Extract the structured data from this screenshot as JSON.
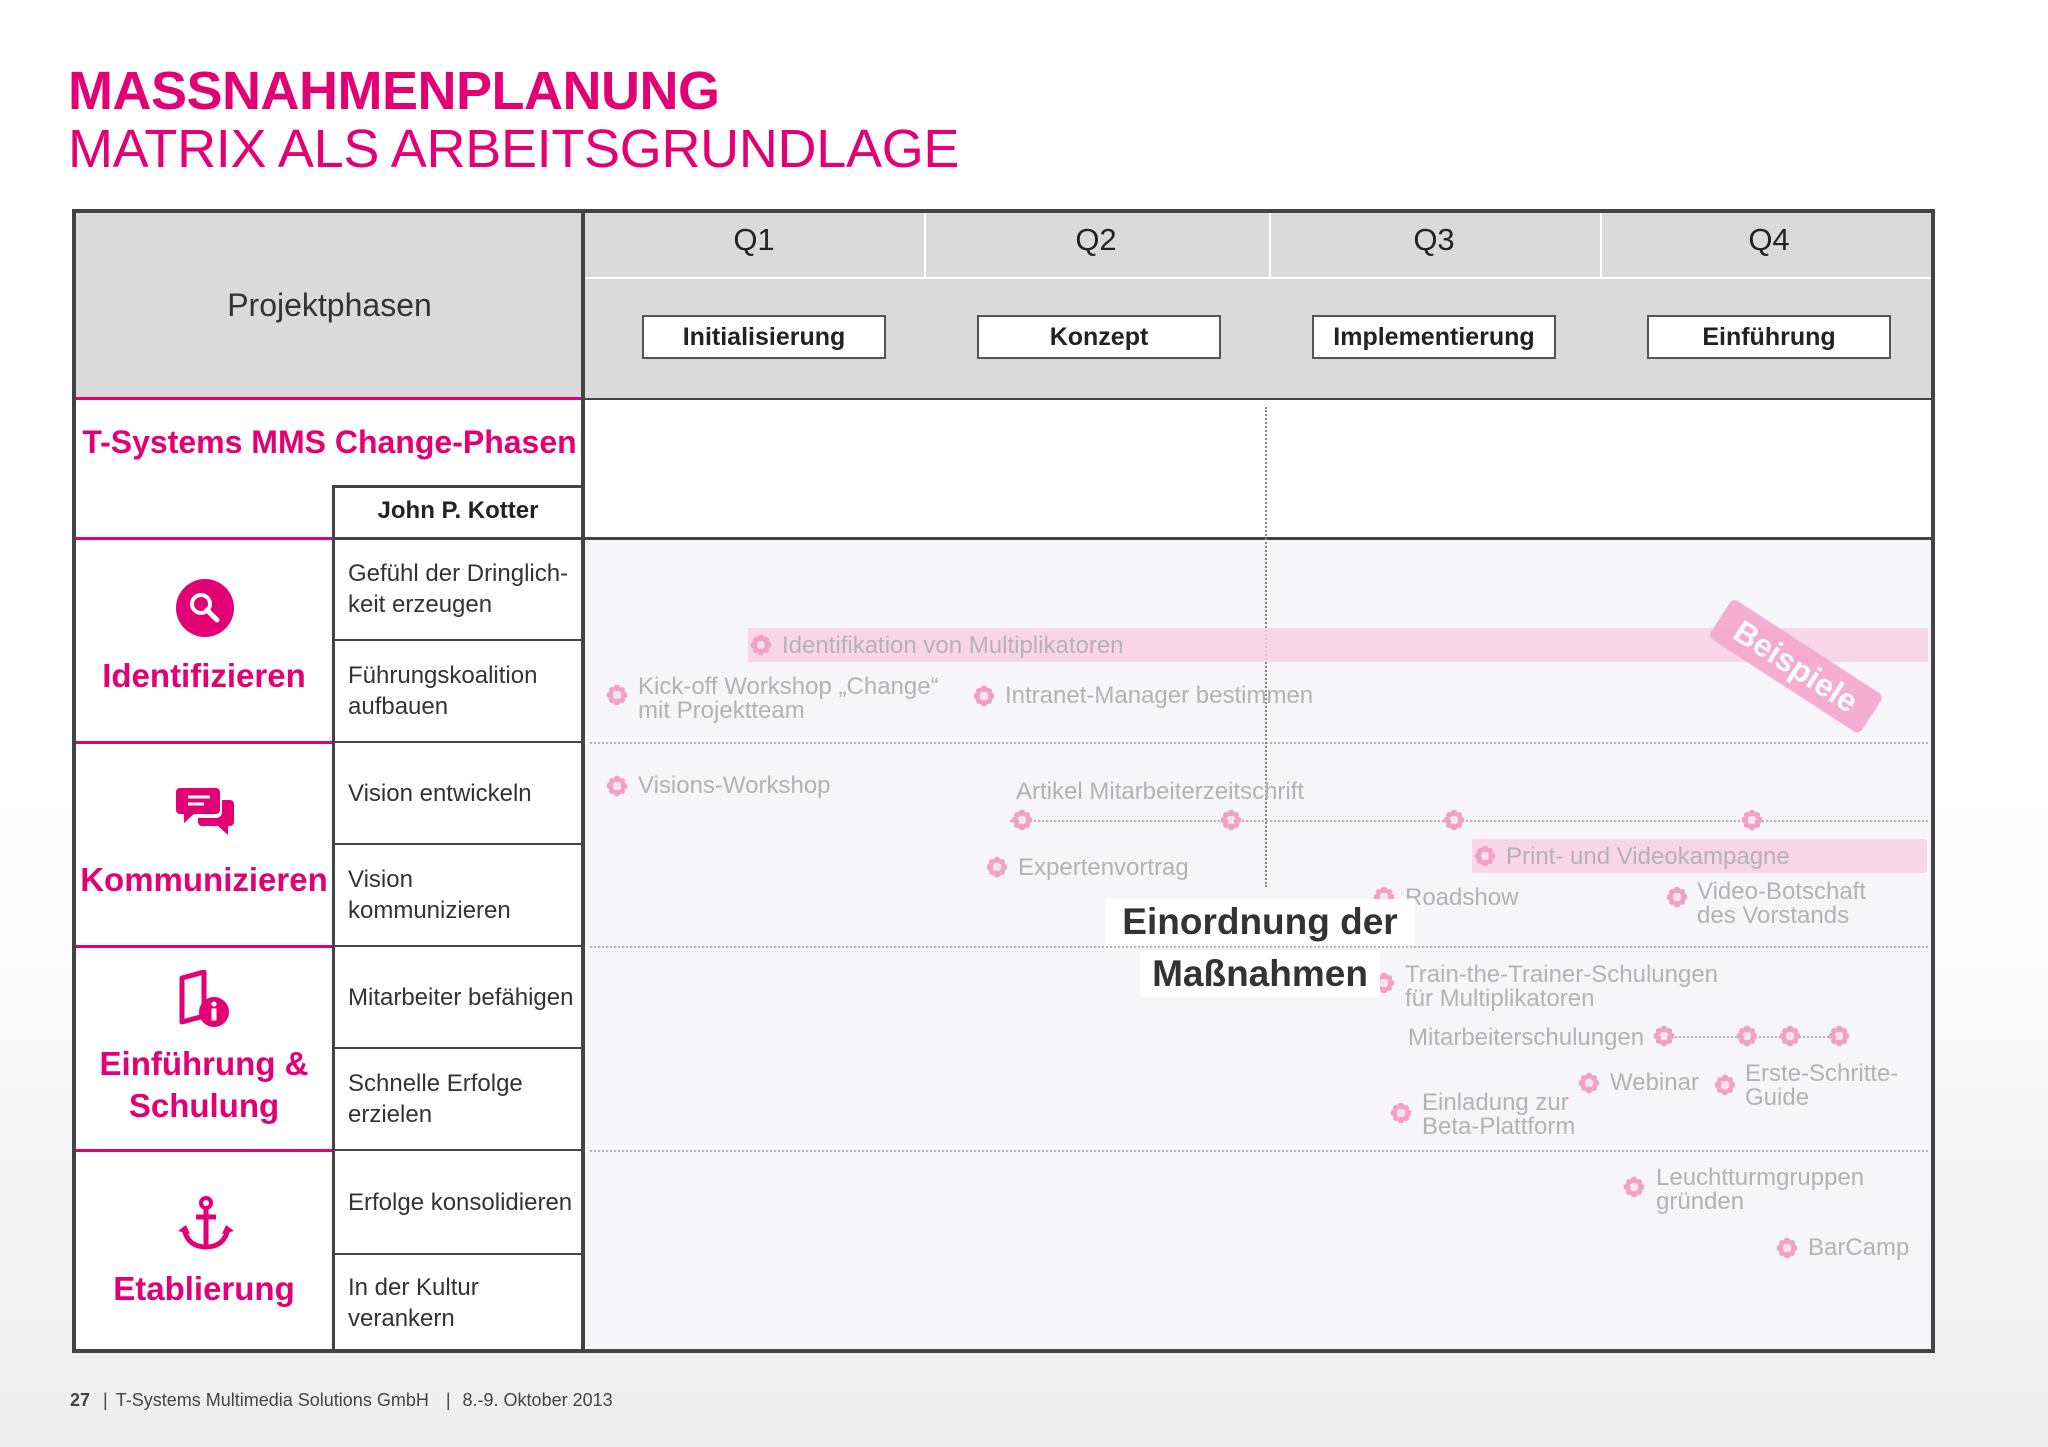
{
  "title": {
    "line1": "MASSNAHMENPLANUNG",
    "line2": "MATRIX ALS ARBEITSGRUNDLAGE"
  },
  "header": {
    "phases_label": "Projektphasen",
    "quarters": [
      "Q1",
      "Q2",
      "Q3",
      "Q4"
    ],
    "project_phases": [
      "Initialisierung",
      "Konzept",
      "Implementierung",
      "Einführung"
    ]
  },
  "change_phases": {
    "label": "T-Systems MMS Change-Phasen",
    "kotter": "John P. Kotter"
  },
  "categories": [
    {
      "label": "Identifizieren",
      "icon": "search-icon",
      "steps": [
        "Gefühl der Dringlich-\nkeit erzeugen",
        "Führungskoalition\naufbauen"
      ]
    },
    {
      "label": "Kommunizieren",
      "icon": "chat-bubbles-icon",
      "steps": [
        "Vision entwickeln",
        "Vision\nkommunizieren"
      ]
    },
    {
      "label": "Einführung &\nSchulung",
      "icon": "book-info-icon",
      "steps": [
        "Mitarbeiter befähigen",
        "Schnelle Erfolge\nerzielen"
      ]
    },
    {
      "label": "Etablierung",
      "icon": "anchor-icon",
      "steps": [
        "Erfolge konsolidieren",
        "In der Kultur\nverankern"
      ]
    }
  ],
  "activities": {
    "identifikation": "Identifikation von Multiplikatoren",
    "kickoff": "Kick-off Workshop „Change“\nmit Projektteam",
    "intranet": "Intranet-Manager bestimmen",
    "visions": "Visions-Workshop",
    "artikel": "Artikel Mitarbeiterzeitschrift",
    "experten": "Expertenvortrag",
    "print": "Print- und Videokampagne",
    "roadshow": "Roadshow",
    "video": "Video-Botschaft\ndes Vorstands",
    "trainer": "Train-the-Trainer-Schulungen\nfür Multiplikatoren",
    "mitarbeiterschulungen": "Mitarbeiterschulungen",
    "webinar": "Webinar",
    "erste": "Erste-Schritte-\nGuide",
    "einladung": "Einladung zur\nBeta-Plattform",
    "leuchtturm": "Leuchtturmgruppen\ngründen",
    "barcamp": "BarCamp"
  },
  "stamp": "Beispiele",
  "einordnung": {
    "line1": "Einordnung der",
    "line2": "Maßnahmen"
  },
  "footer": {
    "page": "27",
    "company": "T-Systems Multimedia Solutions GmbH",
    "date": "8.-9. Oktober 2013"
  },
  "colors": {
    "magenta": "#e20074",
    "header_gray": "#dadadb",
    "activity_gray": "#b3b3b3"
  }
}
